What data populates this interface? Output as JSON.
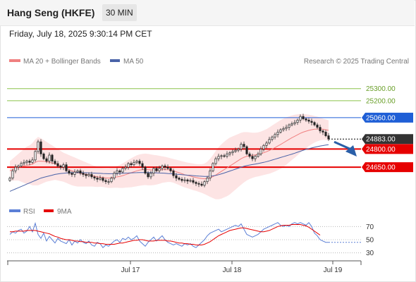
{
  "header": {
    "title": "Hang Seng (HKFE)",
    "timeframe": "30 MIN",
    "datetime": "Friday, July 18, 2025 9:30:14 PM CET"
  },
  "legend": {
    "ma20_label": "MA 20 + Bollinger Bands",
    "ma50_label": "MA 50",
    "credit": "Research © 2025 Trading Central",
    "rsi_label": "RSI",
    "rsi_ma_label": "9MA"
  },
  "colors": {
    "ma20": "#f08080",
    "ma50": "#4a63a8",
    "bollinger_fill": "#fde4e4",
    "resistance_green": "#8bc34a",
    "pivot_blue": "#1f5fd6",
    "support_red": "#e60000",
    "last_price_bg": "#333333",
    "rsi": "#5b7fd6",
    "rsi_ma": "#e60000",
    "arrow": "#2a5fa8"
  },
  "chart_data": [
    {
      "type": "candlestick",
      "title": "",
      "y_range": [
        24400,
        25450
      ],
      "x_tick_labels": [
        "Jul 17",
        "Jul 18",
        "Jul 19"
      ],
      "levels": [
        {
          "value": 25300,
          "label": "25300.00",
          "kind": "resistance"
        },
        {
          "value": 25200,
          "label": "25200.00",
          "kind": "resistance"
        },
        {
          "value": 25060,
          "label": "25060.00",
          "kind": "pivot"
        },
        {
          "value": 24883,
          "label": "24883.00",
          "kind": "last"
        },
        {
          "value": 24800,
          "label": "24800.00",
          "kind": "support"
        },
        {
          "value": 24650,
          "label": "24650.00",
          "kind": "support"
        }
      ],
      "close": [
        24560,
        24620,
        24650,
        24660,
        24680,
        24690,
        24700,
        24690,
        24710,
        24780,
        24860,
        24760,
        24720,
        24700,
        24750,
        24700,
        24680,
        24660,
        24650,
        24670,
        24620,
        24600,
        24590,
        24610,
        24620,
        24600,
        24590,
        24580,
        24590,
        24570,
        24560,
        24550,
        24560,
        24540,
        24530,
        24530,
        24560,
        24600,
        24620,
        24610,
        24640,
        24650,
        24680,
        24670,
        24690,
        24700,
        24680,
        24650,
        24600,
        24570,
        24600,
        24640,
        24620,
        24640,
        24660,
        24650,
        24640,
        24620,
        24580,
        24560,
        24550,
        24540,
        24545,
        24535,
        24540,
        24525,
        24515,
        24510,
        24500,
        24530,
        24560,
        24620,
        24680,
        24720,
        24740,
        24745,
        24740,
        24760,
        24770,
        24780,
        24790,
        24800,
        24840,
        24820,
        24760,
        24740,
        24720,
        24740,
        24760,
        24800,
        24830,
        24850,
        24880,
        24900,
        24920,
        24940,
        24960,
        24970,
        24980,
        25000,
        25010,
        25020,
        25040,
        25070,
        25050,
        25040,
        25030,
        25020,
        25000,
        24980,
        24950,
        24940,
        24910,
        24883
      ],
      "ma20": [
        24620,
        24630,
        24640,
        24650,
        24655,
        24660,
        24665,
        24670,
        24675,
        24690,
        24700,
        24700,
        24698,
        24695,
        24690,
        24685,
        24680,
        24670,
        24660,
        24650,
        24640,
        24630,
        24620,
        24612,
        24605,
        24600,
        24595,
        24590,
        24585,
        24580,
        24575,
        24570,
        24568,
        24565,
        24562,
        24560,
        24562,
        24566,
        24570,
        24574,
        24580,
        24588,
        24596,
        24604,
        24612,
        24620,
        24626,
        24630,
        24632,
        24630,
        24628,
        24627,
        24627,
        24628,
        24630,
        24630,
        24629,
        24626,
        24620,
        24612,
        24604,
        24596,
        24588,
        24582,
        24576,
        24570,
        24565,
        24560,
        24556,
        24554,
        24556,
        24562,
        24572,
        24585,
        24600,
        24615,
        24630,
        24645,
        24660,
        24675,
        24690,
        24705,
        24720,
        24732,
        24740,
        24745,
        24748,
        24752,
        24756,
        24762,
        24770,
        24778,
        24788,
        24800,
        24812,
        24825,
        24838,
        24852,
        24866,
        24880,
        24894,
        24906,
        24918,
        24930,
        24940,
        24948,
        24955,
        24960,
        24964,
        24966,
        24966,
        24964,
        24960,
        24955
      ],
      "ma50": [
        24450,
        24460,
        24470,
        24480,
        24490,
        24500,
        24510,
        24520,
        24530,
        24540,
        24550,
        24560,
        24566,
        24572,
        24578,
        24584,
        24590,
        24594,
        24598,
        24600,
        24602,
        24604,
        24605,
        24606,
        24606,
        24606,
        24605,
        24604,
        24603,
        24602,
        24601,
        24600,
        24599,
        24598,
        24597,
        24596,
        24596,
        24597,
        24598,
        24599,
        24600,
        24601,
        24602,
        24603,
        24604,
        24605,
        24606,
        24606,
        24606,
        24606,
        24605,
        24604,
        24603,
        24602,
        24601,
        24600,
        24598,
        24596,
        24594,
        24592,
        24590,
        24588,
        24586,
        24584,
        24582,
        24580,
        24578,
        24576,
        24575,
        24574,
        24574,
        24575,
        24578,
        24582,
        24588,
        24595,
        24602,
        24610,
        24618,
        24626,
        24634,
        24642,
        24650,
        24657,
        24663,
        24668,
        24672,
        24676,
        24680,
        24685,
        24690,
        24696,
        24702,
        24709,
        24716,
        24723,
        24730,
        24737,
        24744,
        24751,
        24758,
        24766,
        24774,
        24782,
        24790,
        24797,
        24803,
        24809,
        24815,
        24820,
        24825,
        24829,
        24833,
        24836
      ],
      "boll_upper": [
        24700,
        24720,
        24740,
        24760,
        24780,
        24800,
        24820,
        24830,
        24850,
        24880,
        24900,
        24890,
        24875,
        24860,
        24845,
        24830,
        24815,
        24800,
        24785,
        24770,
        24760,
        24750,
        24740,
        24730,
        24720,
        24710,
        24700,
        24690,
        24680,
        24670,
        24662,
        24654,
        24648,
        24644,
        24642,
        24642,
        24646,
        24652,
        24660,
        24670,
        24682,
        24695,
        24710,
        24724,
        24736,
        24748,
        24756,
        24760,
        24762,
        24760,
        24756,
        24752,
        24748,
        24744,
        24740,
        24736,
        24730,
        24724,
        24718,
        24712,
        24706,
        24700,
        24694,
        24688,
        24684,
        24680,
        24676,
        24674,
        24674,
        24680,
        24695,
        24720,
        24750,
        24785,
        24815,
        24840,
        24860,
        24880,
        24895,
        24905,
        24915,
        24925,
        24935,
        24940,
        24940,
        24938,
        24935,
        24935,
        24938,
        24945,
        24955,
        24965,
        24980,
        24995,
        25010,
        25025,
        25040,
        25052,
        25062,
        25070,
        25078,
        25084,
        25088,
        25090,
        25090,
        25088,
        25085,
        25080,
        25074,
        25068,
        25060,
        25052,
        25045,
        25038
      ],
      "boll_lower": [
        24540,
        24540,
        24540,
        24540,
        24530,
        24520,
        24510,
        24510,
        24500,
        24500,
        24500,
        24510,
        24520,
        24530,
        24535,
        24540,
        24545,
        24540,
        24535,
        24530,
        24520,
        24510,
        24500,
        24494,
        24490,
        24490,
        24490,
        24490,
        24490,
        24490,
        24488,
        24486,
        24488,
        24486,
        24482,
        24478,
        24478,
        24480,
        24480,
        24478,
        24478,
        24481,
        24482,
        24484,
        24488,
        24492,
        24496,
        24500,
        24502,
        24500,
        24500,
        24502,
        24506,
        24512,
        24520,
        24524,
        24528,
        24528,
        24522,
        24512,
        24502,
        24492,
        24482,
        24476,
        24468,
        24460,
        24454,
        24446,
        24438,
        24428,
        24417,
        24404,
        24394,
        24385,
        24385,
        24390,
        24400,
        24410,
        24425,
        24445,
        24465,
        24485,
        24505,
        24524,
        24540,
        24552,
        24561,
        24569,
        24574,
        24579,
        24585,
        24591,
        24596,
        24605,
        24614,
        24625,
        24636,
        24652,
        24670,
        24690,
        24710,
        24728,
        24748,
        24770,
        24790,
        24808,
        24825,
        24840,
        24854,
        24864,
        24872,
        24876,
        24875,
        24872
      ]
    },
    {
      "type": "line",
      "title": "",
      "y_ticks": [
        70,
        50,
        30
      ],
      "y_range": [
        20,
        80
      ],
      "series": [
        {
          "name": "RSI",
          "values": [
            58,
            62,
            60,
            64,
            66,
            60,
            63,
            70,
            62,
            75,
            58,
            52,
            60,
            48,
            55,
            50,
            45,
            52,
            48,
            46,
            44,
            50,
            42,
            48,
            45,
            50,
            46,
            44,
            48,
            42,
            40,
            46,
            44,
            38,
            42,
            40,
            44,
            48,
            50,
            46,
            52,
            50,
            54,
            50,
            52,
            56,
            48,
            44,
            40,
            46,
            50,
            54,
            48,
            52,
            56,
            50,
            46,
            44,
            42,
            44,
            42,
            40,
            44,
            42,
            44,
            40,
            38,
            42,
            46,
            50,
            56,
            60,
            62,
            64,
            66,
            62,
            64,
            66,
            68,
            70,
            72,
            70,
            74,
            66,
            58,
            56,
            54,
            56,
            58,
            62,
            66,
            68,
            70,
            72,
            74,
            76,
            72,
            70,
            72,
            70,
            74,
            76,
            74,
            76,
            74,
            72,
            76,
            70,
            60,
            56,
            50,
            48,
            46,
            46,
            46,
            46,
            46,
            46,
            46,
            46,
            46
          ]
        },
        {
          "name": "9MA",
          "values": [
            62,
            62,
            63,
            63,
            63,
            63,
            64,
            64,
            64,
            64,
            63,
            62,
            61,
            60,
            59,
            57,
            55,
            54,
            52,
            51,
            50,
            50,
            49,
            48,
            48,
            47,
            47,
            46,
            46,
            46,
            45,
            45,
            44,
            44,
            43,
            43,
            43,
            43,
            44,
            45,
            45,
            46,
            47,
            48,
            49,
            49,
            50,
            50,
            49,
            48,
            48,
            48,
            49,
            49,
            49,
            49,
            48,
            48,
            47,
            46,
            45,
            45,
            44,
            44,
            43,
            43,
            42,
            42,
            42,
            43,
            45,
            47,
            50,
            53,
            56,
            58,
            60,
            62,
            64,
            65,
            66,
            67,
            68,
            68,
            67,
            66,
            65,
            64,
            63,
            62,
            62,
            63,
            64,
            66,
            68,
            70,
            71,
            72,
            72,
            72,
            73,
            73,
            73,
            73,
            72,
            71,
            69,
            66,
            63,
            60,
            57
          ]
        }
      ]
    }
  ]
}
